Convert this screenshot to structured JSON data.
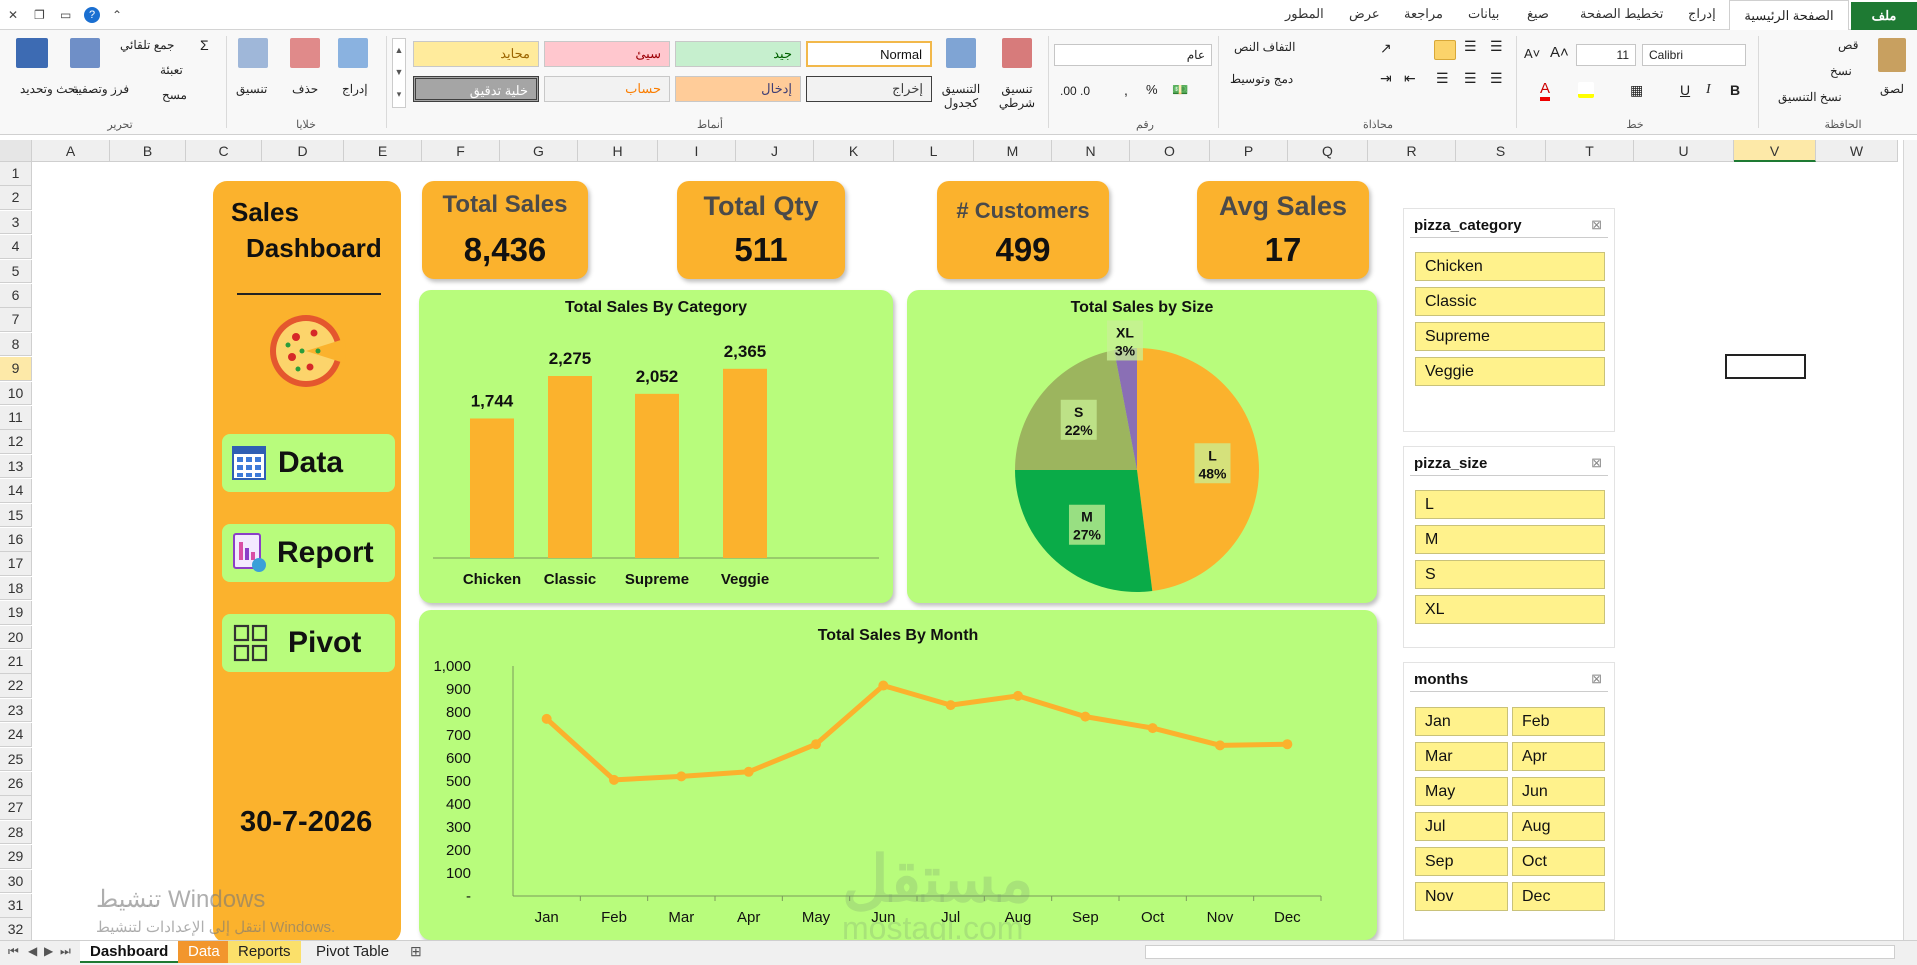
{
  "ribbon_tabs": [
    "ملف",
    "الصفحة الرئيسية",
    "إدراج",
    "تخطيط الصفحة",
    "صيغ",
    "بيانات",
    "مراجعة",
    "عرض",
    "المطور"
  ],
  "ribbon": {
    "clipboard": {
      "label": "الحافظة",
      "paste": "لصق",
      "cut": "قص",
      "copy": "نسخ",
      "format_painter": "نسخ التنسيق"
    },
    "font": {
      "label": "خط",
      "name": "Calibri",
      "size": "11"
    },
    "alignment": {
      "label": "محاذاة",
      "wrap": "التفاف النص",
      "merge": "دمج وتوسيط"
    },
    "number": {
      "label": "رقم",
      "format": "عام"
    },
    "styles": {
      "label": "أنماط",
      "conditional": "تنسيق شرطي",
      "as_table": "التنسيق كجدول",
      "cells": [
        "Normal",
        "جيد",
        "سيئ",
        "محايد",
        "إخراج",
        "إدخال",
        "حساب",
        "خلية تدقيق"
      ]
    },
    "cells_group": {
      "label": "خلايا",
      "insert": "إدراج",
      "delete": "حذف",
      "format": "تنسيق"
    },
    "editing": {
      "label": "تحرير",
      "autosum": "جمع تلقائي",
      "fill": "تعبئة",
      "clear": "مسح",
      "sort": "فرز وتصفية",
      "find": "بحث وتحديد"
    }
  },
  "grid": {
    "columns": [
      "A",
      "B",
      "C",
      "D",
      "E",
      "F",
      "G",
      "H",
      "I",
      "J",
      "K",
      "L",
      "M",
      "N",
      "O",
      "P",
      "Q",
      "R",
      "S",
      "T",
      "U",
      "V",
      "W"
    ],
    "rows": [
      "1",
      "2",
      "3",
      "4",
      "5",
      "6",
      "7",
      "8",
      "9",
      "10",
      "11",
      "12",
      "13",
      "14",
      "15",
      "16",
      "17",
      "18",
      "19",
      "20",
      "21",
      "22",
      "23",
      "24",
      "25",
      "26",
      "27",
      "28",
      "29",
      "30",
      "31",
      "32"
    ]
  },
  "sidebar": {
    "title_line1": "Sales",
    "title_line2": "Dashboard",
    "nav": [
      "Data",
      "Report",
      "Pivot"
    ],
    "date": "30-7-2026"
  },
  "kpis": [
    {
      "label": "Total Sales",
      "value": "8,436"
    },
    {
      "label": "Total Qty",
      "value": "511"
    },
    {
      "label": "# Customers",
      "value": "499"
    },
    {
      "label": "Avg Sales",
      "value": "17"
    }
  ],
  "chart_data": [
    {
      "type": "bar",
      "title": "Total Sales By Category",
      "categories": [
        "Chicken",
        "Classic",
        "Supreme",
        "Veggie"
      ],
      "values": [
        1744,
        2275,
        2052,
        2365
      ],
      "value_labels": [
        "1,744",
        "2,275",
        "2,052",
        "2,365"
      ],
      "color": "#fbb22d"
    },
    {
      "type": "pie",
      "title": "Total Sales by Size",
      "categories": [
        "L",
        "M",
        "S",
        "XL"
      ],
      "values": [
        48,
        27,
        22,
        3
      ],
      "value_labels": [
        "48%",
        "27%",
        "22%",
        "3%"
      ],
      "colors": [
        "#fbb22d",
        "#0aab48",
        "#9cb55e",
        "#8a6fb5"
      ]
    },
    {
      "type": "line",
      "title": "Total Sales By Month",
      "categories": [
        "Jan",
        "Feb",
        "Mar",
        "Apr",
        "May",
        "Jun",
        "Jul",
        "Aug",
        "Sep",
        "Oct",
        "Nov",
        "Dec"
      ],
      "values": [
        770,
        505,
        520,
        540,
        660,
        915,
        830,
        870,
        780,
        730,
        655,
        660
      ],
      "ylim": [
        0,
        1000
      ],
      "yticks": [
        "-",
        "100",
        "200",
        "300",
        "400",
        "500",
        "600",
        "700",
        "800",
        "900",
        "1,000"
      ],
      "color": "#fbb22d"
    }
  ],
  "slicers": [
    {
      "title": "pizza_category",
      "items": [
        "Chicken",
        "Classic",
        "Supreme",
        "Veggie"
      ]
    },
    {
      "title": "pizza_size",
      "items": [
        "L",
        "M",
        "S",
        "XL"
      ]
    },
    {
      "title": "months",
      "items": [
        "Jan",
        "Feb",
        "Mar",
        "Apr",
        "May",
        "Jun",
        "Jul",
        "Aug",
        "Sep",
        "Oct",
        "Nov",
        "Dec"
      ]
    }
  ],
  "sheet_tabs": [
    "Dashboard",
    "Data",
    "Reports",
    "Pivot Table"
  ],
  "watermark": {
    "activate_title": "تنشيط Windows",
    "activate_sub": "انتقل إلى الإعدادات لتنشيط Windows.",
    "brand": "مستقل",
    "brand_url": "mostaql.com"
  }
}
